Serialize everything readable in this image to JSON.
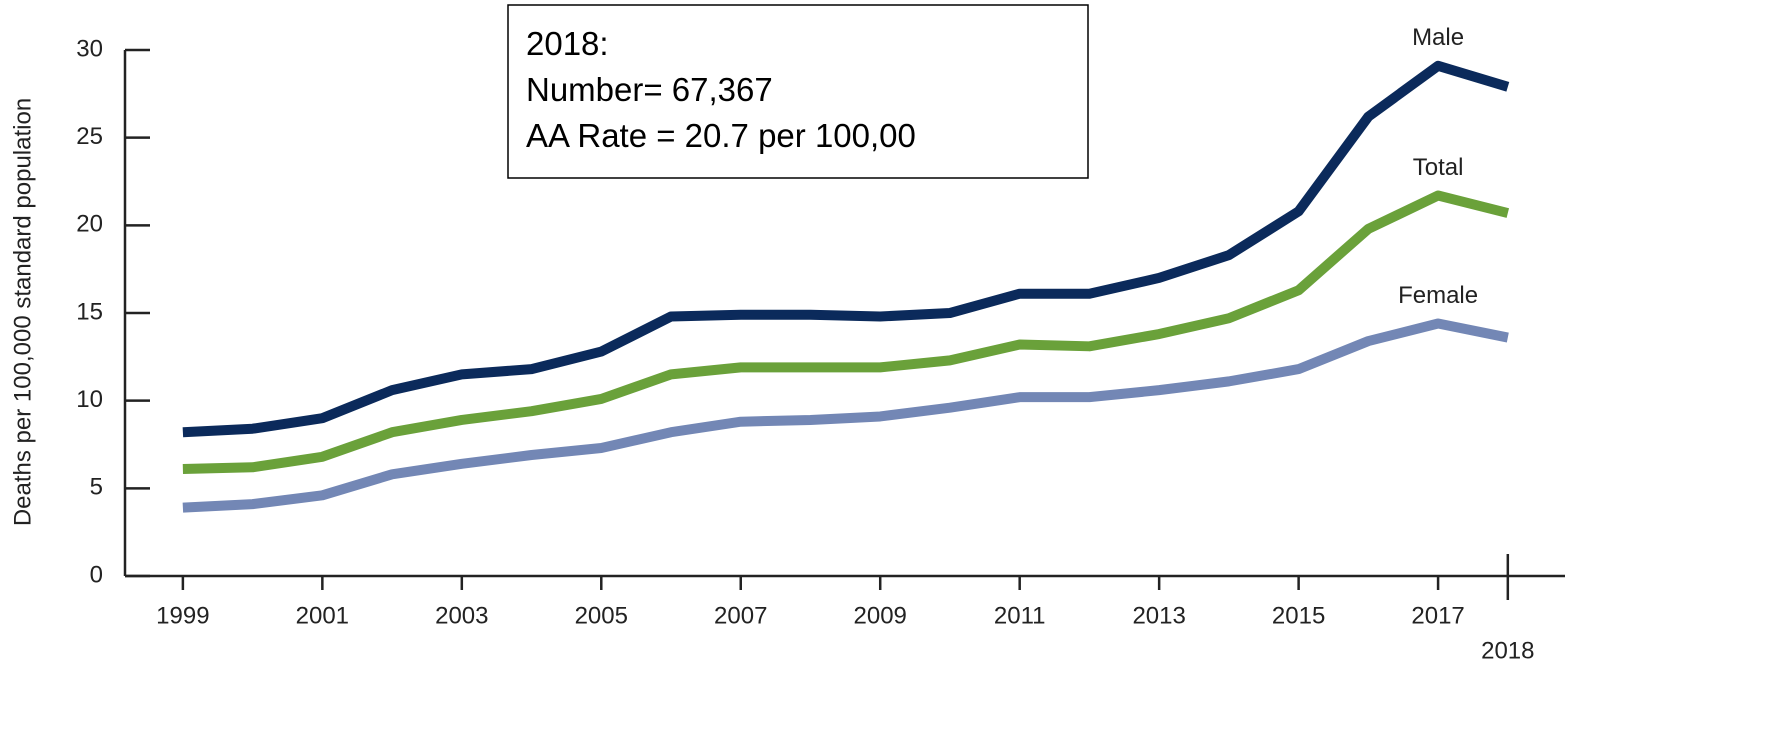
{
  "chart_data": {
    "type": "line",
    "y_label": "Deaths per 100,000 standard population",
    "annotation": [
      "2018:",
      "Number= 67,367",
      "AA Rate = 20.7 per 100,00"
    ],
    "x": [
      1999,
      2000,
      2001,
      2002,
      2003,
      2004,
      2005,
      2006,
      2007,
      2008,
      2009,
      2010,
      2011,
      2012,
      2013,
      2014,
      2015,
      2016,
      2017,
      2018
    ],
    "series": [
      {
        "name": "Male",
        "color": "#0b2a5b",
        "values": [
          8.2,
          8.4,
          9.0,
          10.6,
          11.5,
          11.8,
          12.8,
          14.8,
          14.9,
          14.9,
          14.8,
          15.0,
          16.1,
          16.1,
          17.0,
          18.3,
          20.8,
          26.2,
          29.1,
          27.9
        ]
      },
      {
        "name": "Total",
        "color": "#6aa13a",
        "values": [
          6.1,
          6.2,
          6.8,
          8.2,
          8.9,
          9.4,
          10.1,
          11.5,
          11.9,
          11.9,
          11.9,
          12.3,
          13.2,
          13.1,
          13.8,
          14.7,
          16.3,
          19.8,
          21.7,
          20.7
        ]
      },
      {
        "name": "Female",
        "color": "#7387b5",
        "values": [
          3.9,
          4.1,
          4.6,
          5.8,
          6.4,
          6.9,
          7.3,
          8.2,
          8.8,
          8.9,
          9.1,
          9.6,
          10.2,
          10.2,
          10.6,
          11.1,
          11.8,
          13.4,
          14.4,
          13.6
        ]
      }
    ],
    "xlim": [
      1998.17,
      2018.82
    ],
    "xticks": [
      1999,
      2001,
      2003,
      2005,
      2007,
      2009,
      2011,
      2013,
      2015,
      2017,
      2018
    ],
    "ylim": [
      0,
      30
    ],
    "yticks": [
      0,
      5,
      10,
      15,
      20,
      25,
      30
    ],
    "grid": false
  }
}
